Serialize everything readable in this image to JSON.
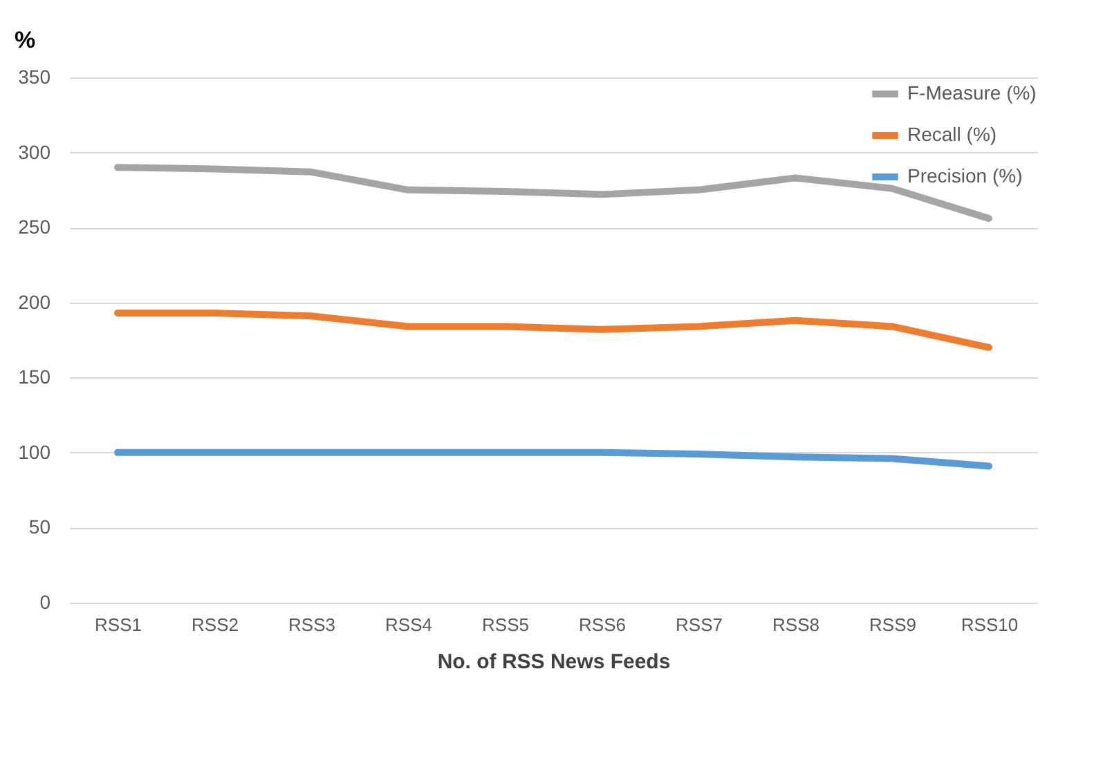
{
  "chart_data": {
    "type": "line",
    "xlabel": "No. of RSS News Feeds",
    "ylabel": "%",
    "categories": [
      "RSS1",
      "RSS2",
      "RSS3",
      "RSS4",
      "RSS5",
      "RSS6",
      "RSS7",
      "RSS8",
      "RSS9",
      "RSS10"
    ],
    "series": [
      {
        "name": "F-Measure (%)",
        "color": "#a5a5a5",
        "values": [
          290,
          289,
          287,
          275,
          274,
          272,
          275,
          283,
          276,
          256
        ]
      },
      {
        "name": "Recall (%)",
        "color": "#ed7d31",
        "values": [
          193,
          193,
          191,
          184,
          184,
          182,
          184,
          188,
          184,
          170
        ]
      },
      {
        "name": "Precision (%)",
        "color": "#5b9bd5",
        "values": [
          100,
          100,
          100,
          100,
          100,
          100,
          99,
          97,
          96,
          91
        ]
      }
    ],
    "ylim": [
      0,
      350
    ],
    "yticks": [
      0,
      50,
      100,
      150,
      200,
      250,
      300,
      350
    ],
    "grid": "y",
    "legend": "top right",
    "marker": "none",
    "line_style": "solid"
  }
}
